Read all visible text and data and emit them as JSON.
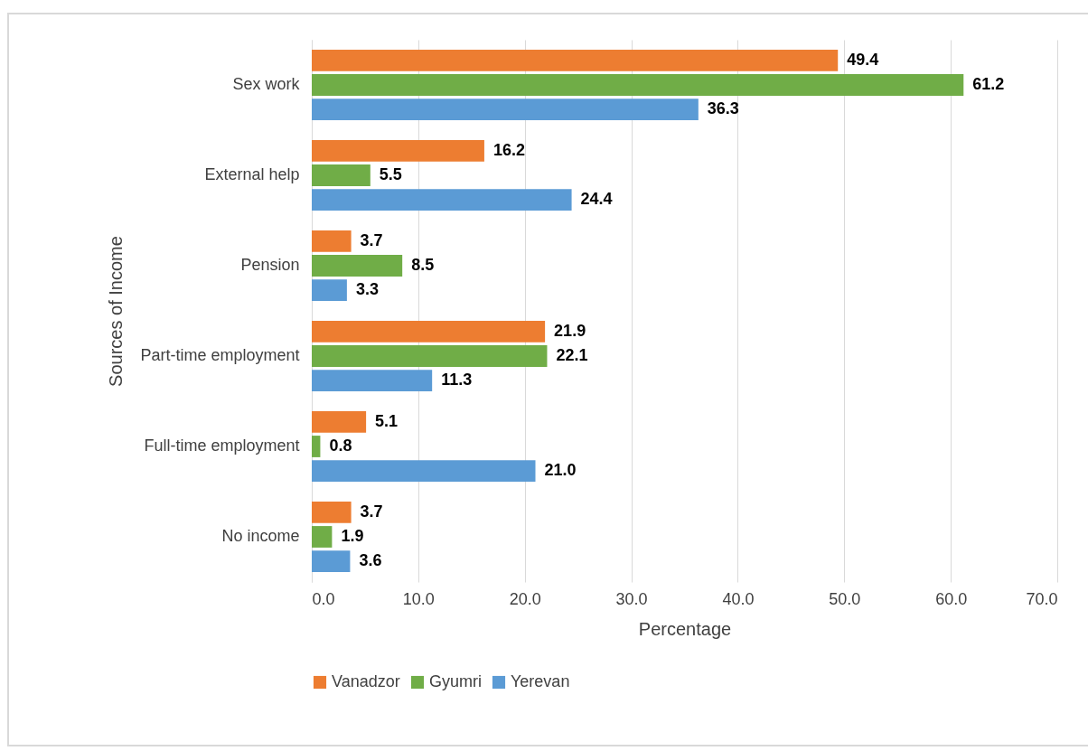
{
  "chart_data": {
    "type": "bar",
    "orientation": "horizontal",
    "xlabel": "Percentage",
    "ylabel": "Sources of Income",
    "categories": [
      "Sex work",
      "External help",
      "Pension",
      "Part-time employment",
      "Full-time employment",
      "No income"
    ],
    "series": [
      {
        "name": "Vanadzor",
        "color": "#ed7d31",
        "values": [
          49.4,
          16.2,
          3.7,
          21.9,
          5.1,
          3.7
        ],
        "value_labels": [
          "49.4",
          "16.2",
          "3.7",
          "21.9",
          "5.1",
          "3.7"
        ]
      },
      {
        "name": "Gyumri",
        "color": "#70ad47",
        "values": [
          61.2,
          5.5,
          8.5,
          22.1,
          0.8,
          1.9
        ],
        "value_labels": [
          "61.2",
          "5.5",
          "8.5",
          "22.1",
          "0.8",
          "1.9"
        ]
      },
      {
        "name": "Yerevan",
        "color": "#5b9bd5",
        "values": [
          36.3,
          24.4,
          3.3,
          11.3,
          21.0,
          3.6
        ],
        "value_labels": [
          "36.3",
          "24.4",
          "3.3",
          "11.3",
          "21.0",
          "3.6"
        ]
      }
    ],
    "xlim": [
      0,
      70
    ],
    "xticks": [
      {
        "value": 0,
        "label": "0.0"
      },
      {
        "value": 10,
        "label": "10.0"
      },
      {
        "value": 20,
        "label": "20.0"
      },
      {
        "value": 30,
        "label": "30.0"
      },
      {
        "value": 40,
        "label": "40.0"
      },
      {
        "value": 50,
        "label": "50.0"
      },
      {
        "value": 60,
        "label": "60.0"
      },
      {
        "value": 70,
        "label": "70.0"
      }
    ],
    "grid": "x",
    "legend": "bottom"
  }
}
